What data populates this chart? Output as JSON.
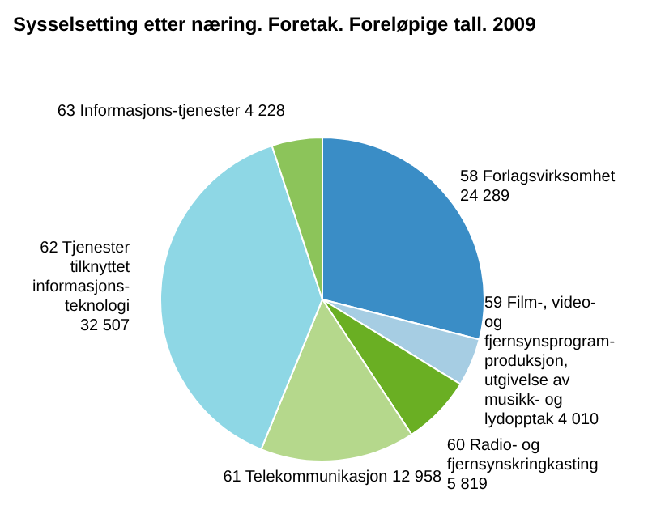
{
  "chart_data": {
    "type": "pie",
    "title": "Sysselsetting etter næring. Foretak. Foreløpige tall. 2009",
    "categories": [
      "58 Forlagsvirksomhet",
      "59 Film-, video- og fjernsynsprogram-produksjon, utgivelse av musikk- og lydopptak",
      "60 Radio- og fjernsynskringkasting",
      "61 Telekommunikasjon",
      "62 Tjenester tilknyttet informasjons-teknologi",
      "63 Informasjons-tjenester"
    ],
    "values": [
      24289,
      4010,
      5819,
      12958,
      32507,
      4228
    ],
    "value_labels": [
      "24 289",
      "4 010",
      "5 819",
      "12 958",
      "32 507",
      "4 228"
    ],
    "colors": [
      "#3a8dc6",
      "#a6cde3",
      "#6aaf23",
      "#b5d88c",
      "#8ed7e5",
      "#8cc45a"
    ]
  }
}
